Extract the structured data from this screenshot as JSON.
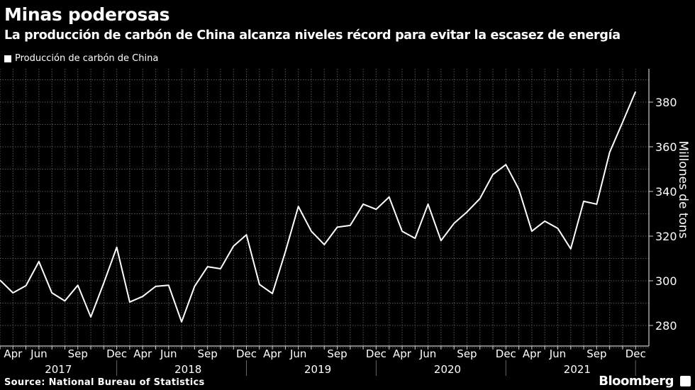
{
  "title": "Minas poderosas",
  "subtitle": "La producción de carbón de China alcanza niveles récord para evitar la escasez de energía",
  "source": "Source: National Bureau of Statistics",
  "brand": "Bloomberg",
  "chart_data": {
    "type": "line",
    "ylabel": "Millones de tons",
    "ylim": [
      268,
      392
    ],
    "yticks": [
      280,
      300,
      320,
      340,
      360,
      380
    ],
    "grid": true,
    "legend_placement": "top-left",
    "colors": {
      "background": "#000000",
      "line": "#ffffff",
      "grid": "#555555"
    },
    "series": [
      {
        "name": "Producción de carbón de China",
        "x": [
          "2017-03",
          "2017-04",
          "2017-05",
          "2017-06",
          "2017-07",
          "2017-08",
          "2017-09",
          "2017-10",
          "2017-11",
          "2017-12",
          "2018-03",
          "2018-04",
          "2018-05",
          "2018-06",
          "2018-07",
          "2018-08",
          "2018-09",
          "2018-10",
          "2018-11",
          "2018-12",
          "2019-03",
          "2019-04",
          "2019-05",
          "2019-06",
          "2019-07",
          "2019-08",
          "2019-09",
          "2019-10",
          "2019-11",
          "2019-12",
          "2020-03",
          "2020-04",
          "2020-05",
          "2020-06",
          "2020-07",
          "2020-08",
          "2020-09",
          "2020-10",
          "2020-11",
          "2020-12",
          "2021-03",
          "2021-04",
          "2021-05",
          "2021-06",
          "2021-07",
          "2021-08",
          "2021-09",
          "2021-10",
          "2021-11",
          "2021-12"
        ],
        "values": [
          300.3,
          294.6,
          297.8,
          308.6,
          294.6,
          291,
          298,
          283.8,
          299,
          315,
          290.5,
          293,
          297.5,
          298,
          281.6,
          297.5,
          306.3,
          305.4,
          315.5,
          320.6,
          298.4,
          294.3,
          313,
          333.3,
          322.2,
          316.2,
          324,
          324.8,
          334.3,
          332,
          337.5,
          322.2,
          319,
          334.3,
          318,
          325.7,
          330.8,
          336.8,
          347.6,
          352,
          341,
          322.2,
          326.7,
          323.5,
          314.3,
          335.6,
          334.3,
          357.5,
          371,
          384.7
        ]
      }
    ],
    "xtick_labels": [
      {
        "month": "Apr",
        "at": "2017-04"
      },
      {
        "month": "Jun",
        "at": "2017-06"
      },
      {
        "month": "Sep",
        "at": "2017-09"
      },
      {
        "month": "Dec",
        "at": "2017-12"
      },
      {
        "month": "Apr",
        "at": "2018-04"
      },
      {
        "month": "Jun",
        "at": "2018-06"
      },
      {
        "month": "Sep",
        "at": "2018-09"
      },
      {
        "month": "Dec",
        "at": "2018-12"
      },
      {
        "month": "Apr",
        "at": "2019-04"
      },
      {
        "month": "Jun",
        "at": "2019-06"
      },
      {
        "month": "Sep",
        "at": "2019-09"
      },
      {
        "month": "Dec",
        "at": "2019-12"
      },
      {
        "month": "Apr",
        "at": "2020-04"
      },
      {
        "month": "Jun",
        "at": "2020-06"
      },
      {
        "month": "Sep",
        "at": "2020-09"
      },
      {
        "month": "Dec",
        "at": "2020-12"
      },
      {
        "month": "Apr",
        "at": "2021-04"
      },
      {
        "month": "Jun",
        "at": "2021-06"
      },
      {
        "month": "Sep",
        "at": "2021-09"
      },
      {
        "month": "Dec",
        "at": "2021-12"
      }
    ],
    "year_labels": [
      "2017",
      "2018",
      "2019",
      "2020",
      "2021"
    ]
  }
}
